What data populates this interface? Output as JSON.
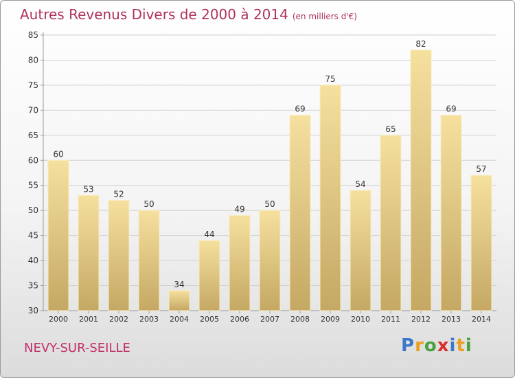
{
  "header": {
    "title": "Autres Revenus Divers de 2000 à 2014",
    "subtitle": "(en milliers d'€)"
  },
  "footer": {
    "commune": "NEVY-SUR-SEILLE",
    "logo_text": "Proxiti"
  },
  "chart_data": {
    "type": "bar",
    "title": "Autres Revenus Divers de 2000 à 2014",
    "subtitle": "(en milliers d'€)",
    "categories": [
      "2000",
      "2001",
      "2002",
      "2003",
      "2004",
      "2005",
      "2006",
      "2007",
      "2008",
      "2009",
      "2010",
      "2011",
      "2012",
      "2013",
      "2014"
    ],
    "values": [
      60,
      53,
      52,
      50,
      34,
      44,
      49,
      50,
      69,
      75,
      54,
      65,
      82,
      69,
      57
    ],
    "ylim": [
      30,
      85
    ],
    "yticks": [
      30,
      35,
      40,
      45,
      50,
      55,
      60,
      65,
      70,
      75,
      80,
      85
    ],
    "grid": true,
    "colors": {
      "bar_light": "#f6e09e",
      "bar_dark": "#c4a864",
      "grid": "#d0d0d0",
      "axis": "#999999"
    }
  }
}
